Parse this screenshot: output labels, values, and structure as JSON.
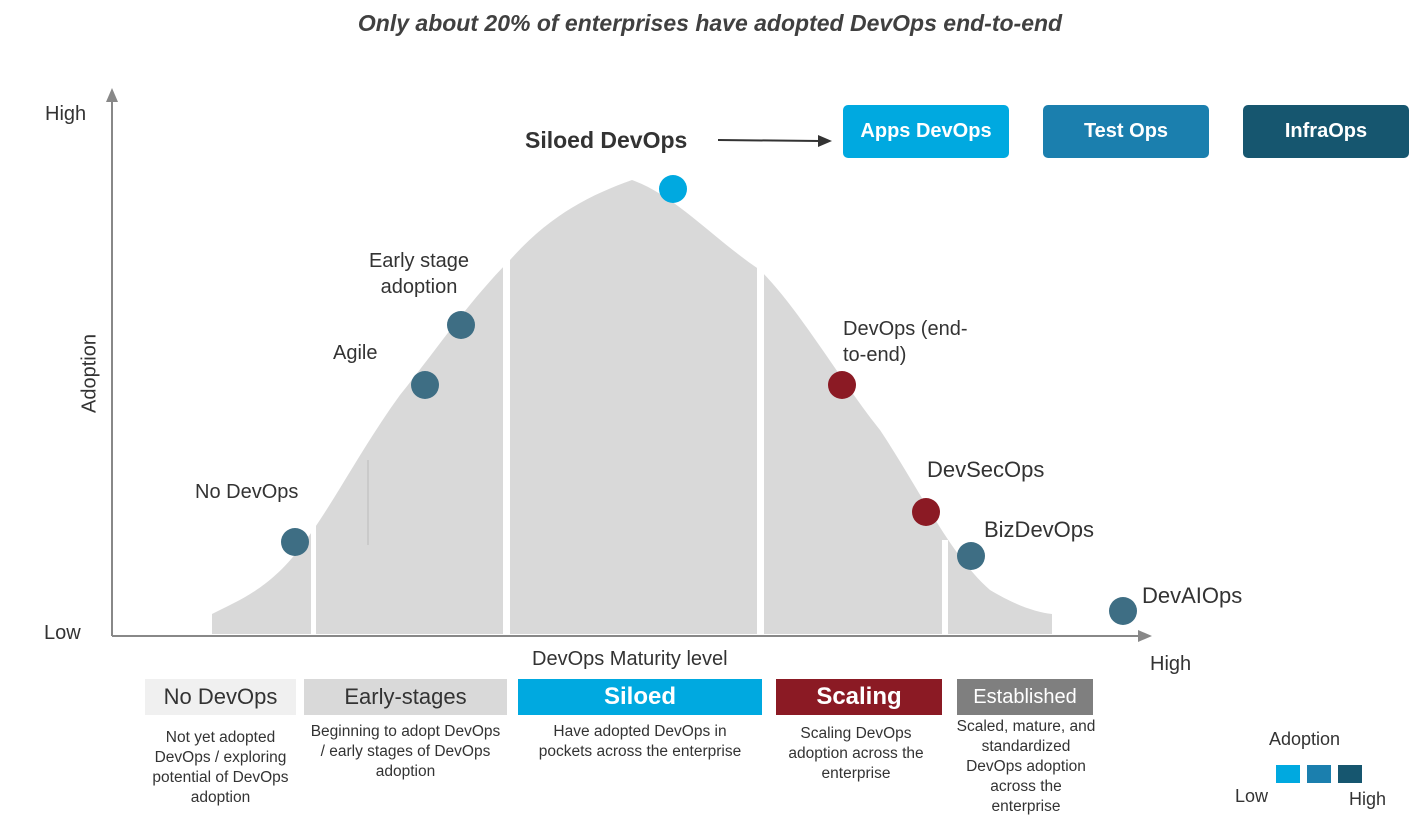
{
  "title": "Only about 20% of enterprises have adopted DevOps end-to-end",
  "axes": {
    "y_label": "Adoption",
    "y_high": "High",
    "y_low": "Low",
    "x_label": "DevOps Maturity level",
    "x_high": "High"
  },
  "peak_label": "Siloed DevOps",
  "ops_boxes": [
    {
      "label": "Apps DevOps",
      "color": "#00a9e0"
    },
    {
      "label": "Test Ops",
      "color": "#1b7fae"
    },
    {
      "label": "InfraOps",
      "color": "#16566f"
    }
  ],
  "points": [
    {
      "label": "No DevOps",
      "color": "#3e6e84"
    },
    {
      "label": "Agile",
      "color": "#3e6e84"
    },
    {
      "label": "Early stage adoption",
      "color": "#3e6e84"
    },
    {
      "label": "",
      "color": "#00a9e0"
    },
    {
      "label": "DevOps (end-to-end)",
      "color": "#8b1a24"
    },
    {
      "label": "DevSecOps",
      "color": "#8b1a24"
    },
    {
      "label": "BizDevOps",
      "color": "#3e6e84"
    },
    {
      "label": "DevAIOps",
      "color": "#3e6e84"
    }
  ],
  "stages": [
    {
      "label": "No DevOps",
      "bg": "#f0f0f0",
      "fg": "#333333",
      "desc": "Not yet adopted DevOps / exploring potential of DevOps adoption"
    },
    {
      "label": "Early-stages",
      "bg": "#d9d9d9",
      "fg": "#333333",
      "desc": "Beginning to adopt DevOps / early stages of DevOps adoption"
    },
    {
      "label": "Siloed",
      "bg": "#00a9e0",
      "fg": "#ffffff",
      "desc": "Have adopted DevOps in pockets across the enterprise"
    },
    {
      "label": "Scaling",
      "bg": "#8b1a24",
      "fg": "#ffffff",
      "desc": "Scaling DevOps adoption across the enterprise"
    },
    {
      "label": "Established",
      "bg": "#7f7f7f",
      "fg": "#ffffff",
      "desc": "Scaled, mature, and standardized DevOps adoption across the enterprise"
    }
  ],
  "legend": {
    "title": "Adoption",
    "low": "Low",
    "high": "High",
    "colors": [
      "#00a9e0",
      "#1b7fae",
      "#16566f"
    ]
  }
}
